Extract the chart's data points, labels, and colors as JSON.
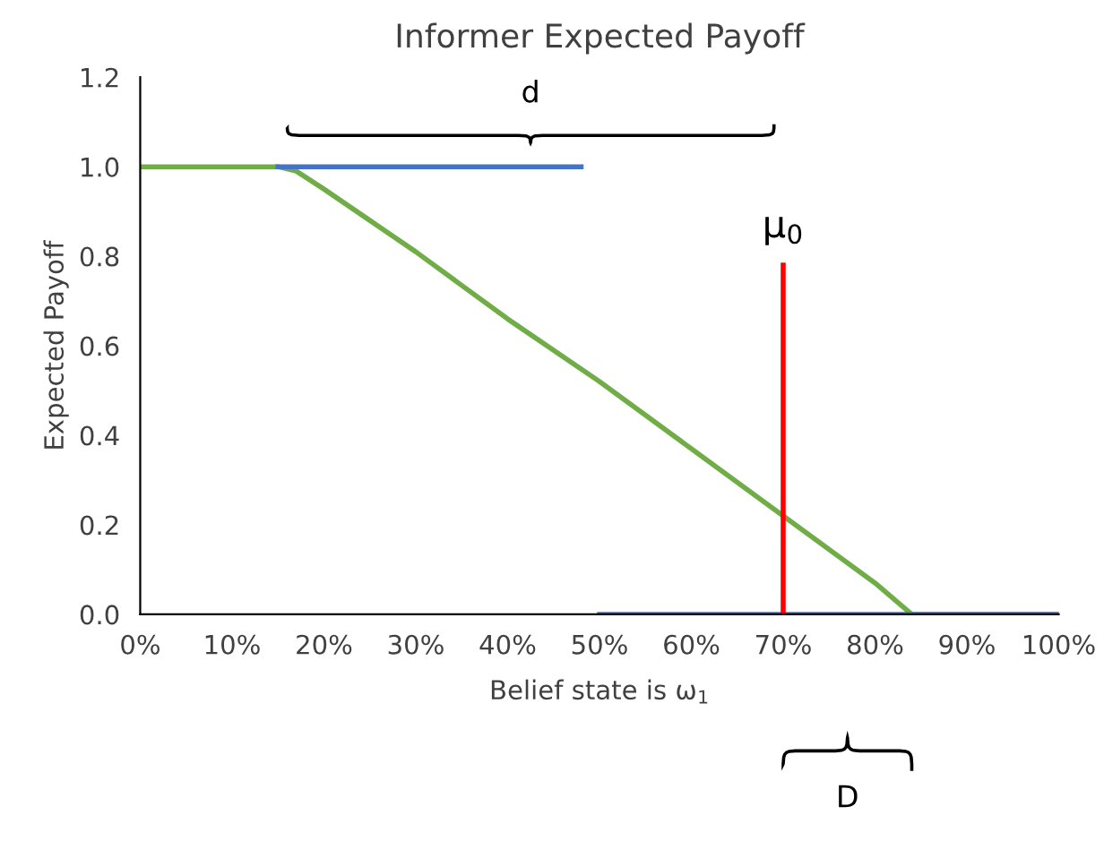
{
  "chart_data": {
    "type": "line",
    "title": "Informer Expected Payoff",
    "xlabel": "Belief state is ω$_{1}$",
    "ylabel": "Expected Payoff",
    "series": [
      {
        "color": "#70ad47",
        "x": [
          0,
          15,
          17,
          20,
          25,
          30,
          40,
          50,
          60,
          70,
          80,
          84,
          100
        ],
        "values": [
          1,
          1,
          0.99,
          0.95,
          0.88,
          0.81,
          0.66,
          0.52,
          0.37,
          0.22,
          0.07,
          0,
          0
        ]
      },
      {
        "color": "#4472c4",
        "x": [
          15,
          48
        ],
        "values": [
          1,
          1
        ]
      },
      {
        "color": "#4472c4",
        "x": [
          50,
          100
        ],
        "values": [
          0,
          0
        ]
      },
      {
        "color": "#ff0000",
        "x": [
          70,
          70
        ],
        "values": [
          0,
          0.78
        ]
      }
    ],
    "annotations": [
      {
        "text": "μ$_{0}$",
        "x": 70,
        "y": 0.78
      },
      "d",
      "D"
    ],
    "xlim": [
      0,
      100
    ],
    "xticks": [
      {
        "value": 0,
        "label": "0%"
      },
      {
        "value": 10,
        "label": "10%"
      },
      {
        "value": 20,
        "label": "20%"
      },
      {
        "value": 30,
        "label": "30%"
      },
      {
        "value": 40,
        "label": "40%"
      },
      {
        "value": 50,
        "label": "50%"
      },
      {
        "value": 60,
        "label": "60%"
      },
      {
        "value": 70,
        "label": "70%"
      },
      {
        "value": 80,
        "label": "80%"
      },
      {
        "value": 90,
        "label": "90%"
      },
      {
        "value": 100,
        "label": "100%"
      }
    ],
    "ylim": [
      0,
      1.2
    ],
    "yticks": [
      {
        "value": 0,
        "label": "0.0"
      },
      {
        "value": 0.2,
        "label": "0.2"
      },
      {
        "value": 0.4,
        "label": "0.4"
      },
      {
        "value": 0.6,
        "label": "0.6"
      },
      {
        "value": 0.8,
        "label": "0.8"
      },
      {
        "value": 1.0,
        "label": "1.0"
      },
      {
        "value": 1.2,
        "label": "1.2"
      }
    ],
    "grid": false,
    "legend": false,
    "marker": "none",
    "line_style": "solid"
  }
}
